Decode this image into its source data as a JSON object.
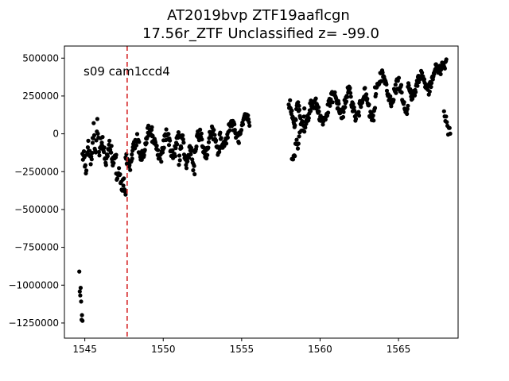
{
  "chart_data": {
    "type": "scatter",
    "title_line1": "AT2019bvp  ZTF19aaflcgn",
    "title_line2": "17.56r_ZTF Unclassified z= -99.0",
    "xlabel": "",
    "ylabel": "",
    "annotation": "s09 cam1ccd4",
    "xlim": [
      1543.7,
      1568.8
    ],
    "ylim": [
      -1350000,
      580000
    ],
    "x_ticks": [
      1545,
      1550,
      1555,
      1560,
      1565
    ],
    "x_tick_labels": [
      "1545",
      "1550",
      "1555",
      "1560",
      "1565"
    ],
    "y_ticks": [
      500000,
      250000,
      0,
      -250000,
      -500000,
      -750000,
      -1000000,
      -1250000
    ],
    "y_tick_labels": [
      "500000",
      "250000",
      "0",
      "−250000",
      "−500000",
      "−750000",
      "−1000000",
      "−1250000"
    ],
    "grid": false,
    "marker_color": "#000000",
    "vline": {
      "x": 1547.7,
      "color": "#d62728",
      "style": "dashed"
    },
    "segments": [
      {
        "x0": 1544.65,
        "x1": 1544.85,
        "y_start": -950000,
        "y_end": -1260000,
        "amp": 60000,
        "noise": 30000,
        "n": 8
      },
      {
        "x0": 1544.85,
        "x1": 1545.5,
        "y_start": -200000,
        "y_end": -100000,
        "amp": 60000,
        "noise": 45000,
        "n": 22
      },
      {
        "x0": 1545.5,
        "x1": 1546.0,
        "y_start": -50000,
        "y_end": -20000,
        "amp": 90000,
        "noise": 50000,
        "n": 16
      },
      {
        "x0": 1546.0,
        "x1": 1547.0,
        "y_start": -100000,
        "y_end": -150000,
        "amp": 50000,
        "noise": 40000,
        "n": 38
      },
      {
        "x0": 1547.0,
        "x1": 1547.6,
        "y_start": -230000,
        "y_end": -380000,
        "amp": 40000,
        "noise": 35000,
        "n": 18
      },
      {
        "x0": 1547.6,
        "x1": 1549.3,
        "y_start": -170000,
        "y_end": -20000,
        "amp": 70000,
        "noise": 45000,
        "n": 70
      },
      {
        "x0": 1549.3,
        "x1": 1551.0,
        "y_start": -100000,
        "y_end": -60000,
        "amp": 70000,
        "noise": 40000,
        "n": 60
      },
      {
        "x0": 1551.0,
        "x1": 1552.0,
        "y_start": -100000,
        "y_end": -180000,
        "amp": 70000,
        "noise": 40000,
        "n": 34
      },
      {
        "x0": 1552.0,
        "x1": 1553.6,
        "y_start": -80000,
        "y_end": -40000,
        "amp": 70000,
        "noise": 40000,
        "n": 56
      },
      {
        "x0": 1553.6,
        "x1": 1555.5,
        "y_start": -20000,
        "y_end": 60000,
        "amp": 60000,
        "noise": 35000,
        "n": 60
      },
      {
        "x0": 1558.0,
        "x1": 1559.0,
        "y_start": 130000,
        "y_end": 110000,
        "amp": 70000,
        "noise": 40000,
        "n": 36
      },
      {
        "x0": 1558.2,
        "x1": 1558.7,
        "y_start": -180000,
        "y_end": -20000,
        "amp": 30000,
        "noise": 30000,
        "n": 14
      },
      {
        "x0": 1559.0,
        "x1": 1561.5,
        "y_start": 120000,
        "y_end": 200000,
        "amp": 70000,
        "noise": 40000,
        "n": 90
      },
      {
        "x0": 1561.5,
        "x1": 1563.5,
        "y_start": 200000,
        "y_end": 180000,
        "amp": 80000,
        "noise": 40000,
        "n": 70
      },
      {
        "x0": 1563.5,
        "x1": 1565.6,
        "y_start": 340000,
        "y_end": 230000,
        "amp": 70000,
        "noise": 40000,
        "n": 70
      },
      {
        "x0": 1565.6,
        "x1": 1567.6,
        "y_start": 300000,
        "y_end": 380000,
        "amp": 60000,
        "noise": 35000,
        "n": 70
      },
      {
        "x0": 1567.6,
        "x1": 1568.05,
        "y_start": 420000,
        "y_end": 470000,
        "amp": 25000,
        "noise": 20000,
        "n": 16
      },
      {
        "x0": 1567.9,
        "x1": 1568.3,
        "y_start": 120000,
        "y_end": 0,
        "amp": 20000,
        "noise": 25000,
        "n": 10
      }
    ]
  }
}
